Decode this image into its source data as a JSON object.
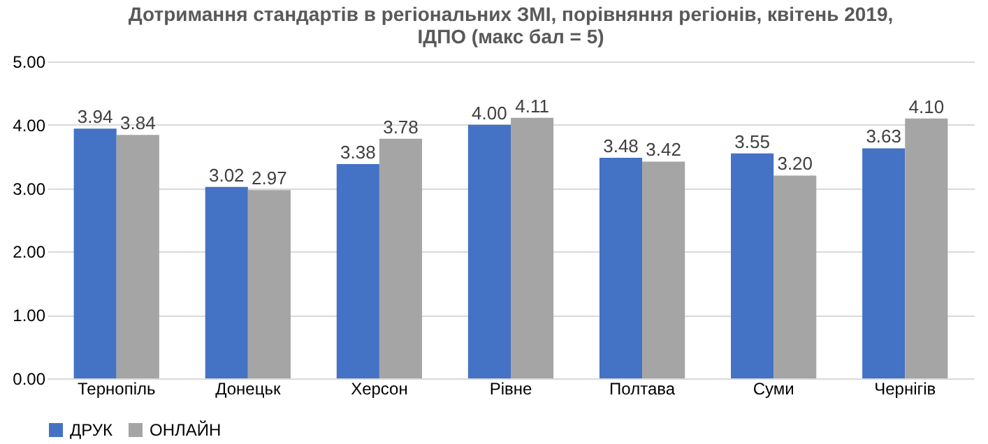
{
  "chart_data": {
    "type": "bar",
    "title": [
      "Дотримання стандартів в регіональних ЗМІ, порівняння регіонів, квітень 2019,",
      "ІДПО (макс бал = 5)"
    ],
    "categories": [
      "Тернопіль",
      "Донецьк",
      "Херсон",
      "Рівне",
      "Полтава",
      "Суми",
      "Чернігів"
    ],
    "series": [
      {
        "name": "ДРУК",
        "color": "#4472c4",
        "values": [
          3.94,
          3.02,
          3.38,
          4.0,
          3.48,
          3.55,
          3.63
        ],
        "value_labels": [
          "3.94",
          "3.02",
          "3.38",
          "4.00",
          "3.48",
          "3.55",
          "3.63"
        ]
      },
      {
        "name": "ОНЛАЙН",
        "color": "#a5a5a5",
        "values": [
          3.84,
          2.97,
          3.78,
          4.11,
          3.42,
          3.2,
          4.1
        ],
        "value_labels": [
          "3.84",
          "2.97",
          "3.78",
          "4.11",
          "3.42",
          "3.20",
          "4.10"
        ]
      }
    ],
    "ylim": [
      0,
      5
    ],
    "yticks": [
      {
        "value": 0,
        "label": "0.00"
      },
      {
        "value": 1,
        "label": "1.00"
      },
      {
        "value": 2,
        "label": "2.00"
      },
      {
        "value": 3,
        "label": "3.00"
      },
      {
        "value": 4,
        "label": "4.00"
      },
      {
        "value": 5,
        "label": "5.00"
      }
    ],
    "grid": "y",
    "legend": "bottom"
  }
}
